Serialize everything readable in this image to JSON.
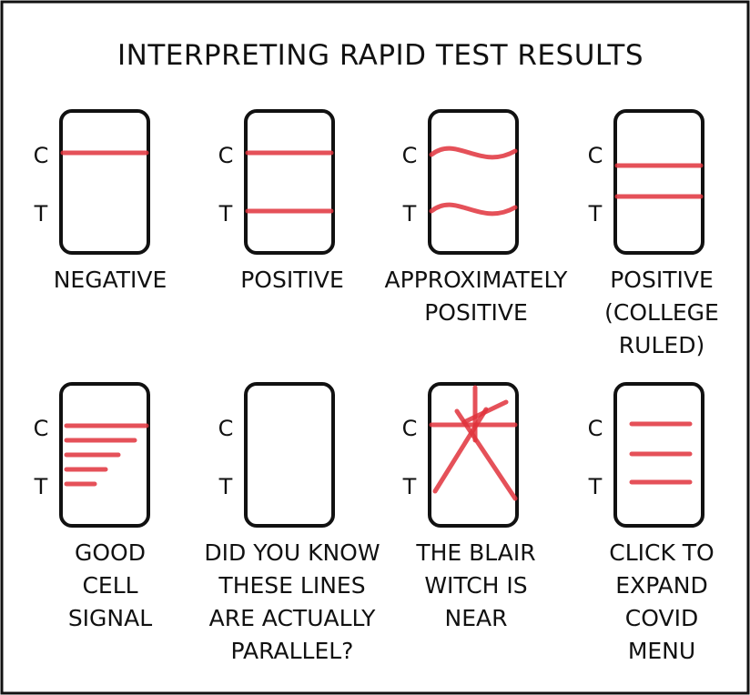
{
  "title": "INTERPRETING RAPID TEST RESULTS",
  "strip_labels": {
    "c": "C",
    "t": "T"
  },
  "colors": {
    "line": "#e0333c",
    "ink": "#111111",
    "ray": "#aaaaaa"
  },
  "panels": [
    {
      "caption": [
        "NEGATIVE"
      ]
    },
    {
      "caption": [
        "POSITIVE"
      ]
    },
    {
      "caption": [
        "APPROXIMATELY",
        "POSITIVE"
      ]
    },
    {
      "caption": [
        "POSITIVE",
        "(COLLEGE",
        "RULED)"
      ]
    },
    {
      "caption": [
        "GOOD",
        "CELL",
        "SIGNAL"
      ]
    },
    {
      "caption": [
        "DID YOU KNOW",
        "THESE LINES",
        "ARE ACTUALLY",
        "PARALLEL?"
      ]
    },
    {
      "caption": [
        "THE BLAIR",
        "WITCH IS",
        "NEAR"
      ]
    },
    {
      "caption": [
        "CLICK TO",
        "EXPAND",
        "COVID",
        "MENU"
      ]
    }
  ]
}
